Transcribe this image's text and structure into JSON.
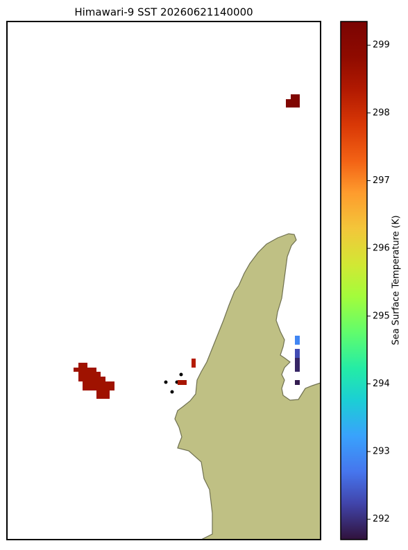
{
  "chart_data": {
    "type": "map",
    "title": "Himawari-9 SST 20260621140000",
    "values": [
      299.2,
      298.6,
      298.3,
      298.5,
      292.9,
      292.3,
      291.9,
      291.8
    ],
    "colorbar": {
      "label": "Sea Surface Temperature (K)",
      "lim": [
        291.7,
        299.35
      ],
      "ticks": [
        292,
        293,
        294,
        295,
        296,
        297,
        298,
        299
      ]
    }
  }
}
